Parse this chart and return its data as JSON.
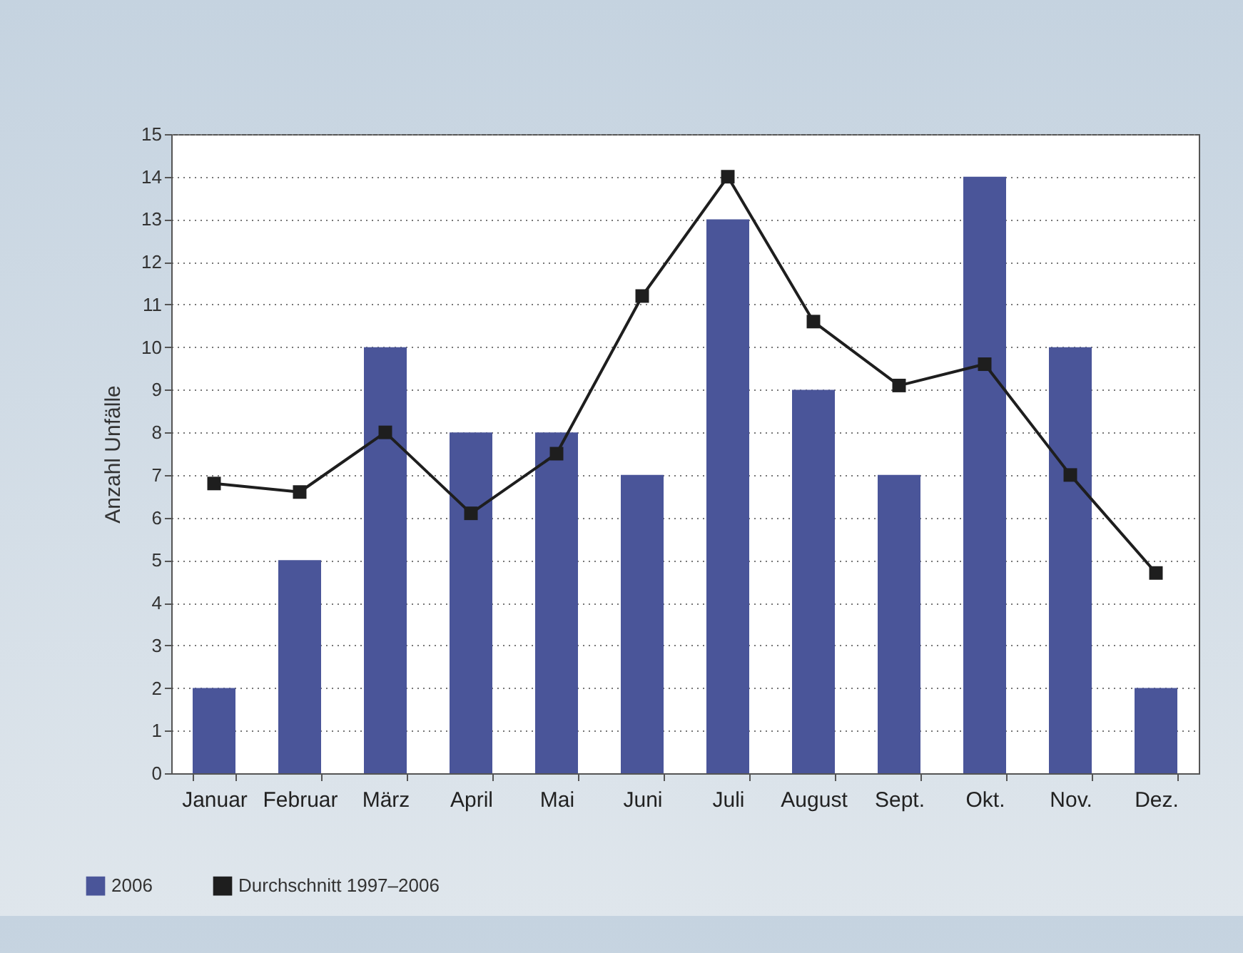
{
  "chart_data": {
    "type": "bar",
    "ylabel": "Anzahl Unfälle",
    "categories": [
      "Januar",
      "Februar",
      "März",
      "April",
      "Mai",
      "Juni",
      "Juli",
      "August",
      "Sept.",
      "Okt.",
      "Nov.",
      "Dez."
    ],
    "series": [
      {
        "name": "2006",
        "color": "#4a5599",
        "values": [
          2,
          5,
          10,
          8,
          8,
          7,
          13,
          9,
          7,
          14,
          10,
          2
        ]
      },
      {
        "name": "Durchschnitt 1997–2006",
        "type": "line",
        "color": "#1e1e1e",
        "values": [
          6.8,
          6.6,
          8.0,
          6.1,
          7.5,
          11.2,
          14.0,
          10.6,
          9.1,
          9.6,
          7.0,
          4.7
        ]
      }
    ],
    "ylim": [
      0,
      15
    ],
    "yticks": [
      0,
      1,
      2,
      3,
      4,
      5,
      6,
      7,
      8,
      9,
      10,
      11,
      12,
      13,
      14,
      15
    ],
    "grid": "y",
    "legend": "bottom left",
    "marker": "square",
    "line_style": "solid"
  }
}
